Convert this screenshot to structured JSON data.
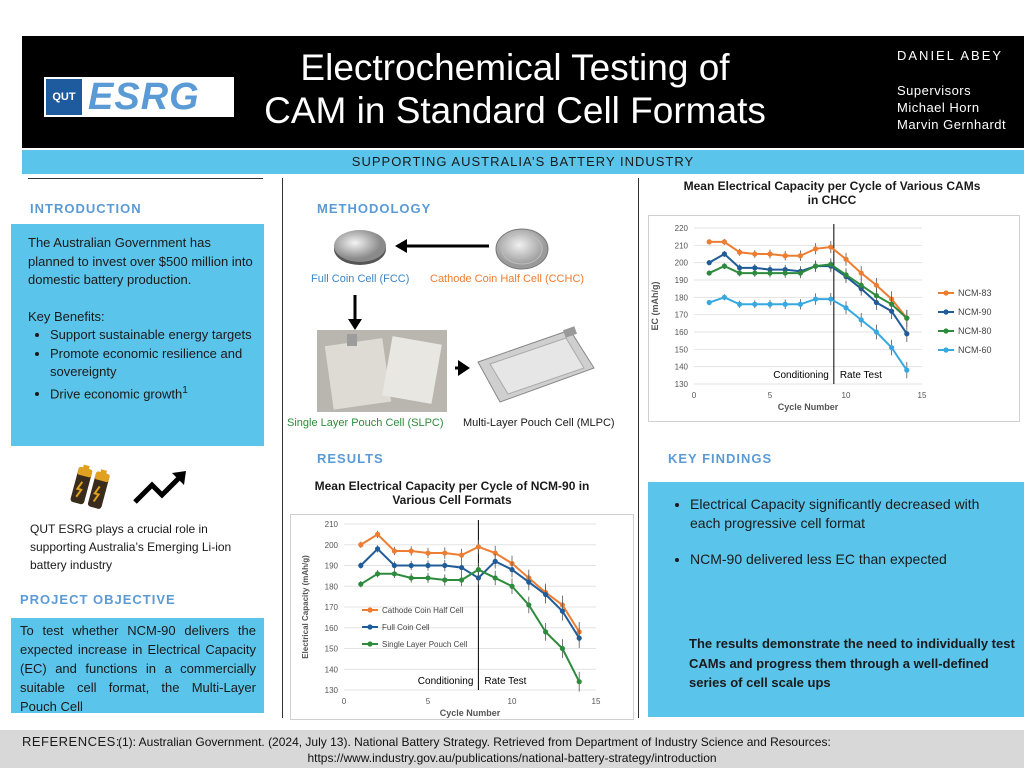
{
  "header": {
    "title_line1": "Electrochemical Testing of",
    "title_line2": "CAM in Standard Cell Formats",
    "author": "DANIEL  ABEY",
    "supervisors_label": "Supervisors",
    "supervisor1": "Michael Horn",
    "supervisor2": "Marvin Gernhardt",
    "logo_small": "QUT",
    "logo_big": "ESRG",
    "tagline": "SUPPORTING AUSTRALIA’S BATTERY INDUSTRY"
  },
  "intro": {
    "heading": "INTRODUCTION",
    "para": "The Australian Government has planned to invest over $500 million into domestic battery production.",
    "benefits_label": "Key Benefits:",
    "benefits": [
      "Support sustainable energy targets",
      "Promote economic resilience and sovereignty",
      "Drive economic growth"
    ],
    "footnote": "1",
    "qut_text": "QUT ESRG plays a crucial role in supporting Australia’s Emerging Li-ion battery industry"
  },
  "objective": {
    "heading": "PROJECT OBJECTIVE",
    "text": "To test whether NCM-90 delivers the expected increase in Electrical Capacity (EC) and functions in a commercially suitable cell format, the Multi-Layer Pouch Cell"
  },
  "methodology": {
    "heading": "METHODOLOGY",
    "fcc": "Full Coin Cell (FCC)",
    "cchc": "Cathode Coin Half Cell (CCHC)",
    "slpc": "Single Layer Pouch Cell (SLPC)",
    "mlpc": "Multi-Layer Pouch Cell (MLPC)"
  },
  "results": {
    "heading": "RESULTS"
  },
  "key_findings": {
    "heading": "KEY FINDINGS",
    "bullets": [
      "Electrical Capacity significantly decreased with each progressive cell format",
      "NCM-90 delivered less EC than expected"
    ],
    "conclusion": "The results demonstrate the need to individually test CAMs and progress them through a well-defined series of cell scale ups"
  },
  "references": {
    "label": "REFERENCES:",
    "text": "(1): Australian Government. (2024, July 13). National Battery Strategy. Retrieved from Department of Industry Science and Resources:",
    "url": "https://www.industry.gov.au/publications/national-battery-strategy/introduction"
  },
  "chart_data": [
    {
      "type": "line",
      "title": "Mean Electrical Capacity per Cycle of Various CAMs in CHCC",
      "xlabel": "Cycle Number",
      "ylabel": "EC (mAh/g)",
      "xlim": [
        0,
        15
      ],
      "ylim": [
        130,
        220
      ],
      "xticks": [
        0,
        5,
        10,
        15
      ],
      "yticks": [
        130,
        140,
        150,
        160,
        170,
        180,
        190,
        200,
        210,
        220
      ],
      "divider_x": 9.2,
      "annotations": [
        "Conditioning",
        "Rate Test"
      ],
      "legend_position": "right",
      "x": [
        1,
        2,
        3,
        4,
        5,
        6,
        7,
        8,
        9,
        10,
        11,
        12,
        13,
        14
      ],
      "series": [
        {
          "name": "NCM-83",
          "color": "#ed7d31",
          "values": [
            212,
            212,
            206,
            205,
            205,
            204,
            204,
            208,
            209,
            202,
            194,
            187,
            179,
            168
          ]
        },
        {
          "name": "NCM-90",
          "color": "#1f5c99",
          "values": [
            200,
            205,
            197,
            197,
            196,
            196,
            195,
            198,
            198,
            192,
            185,
            177,
            172,
            159
          ]
        },
        {
          "name": "NCM-80",
          "color": "#2e8b3e",
          "values": [
            194,
            198,
            194,
            194,
            194,
            194,
            194,
            198,
            199,
            193,
            187,
            181,
            176,
            168
          ]
        },
        {
          "name": "NCM-60",
          "color": "#36a9e1",
          "values": [
            177,
            180,
            176,
            176,
            176,
            176,
            176,
            179,
            179,
            174,
            167,
            160,
            151,
            138
          ]
        }
      ]
    },
    {
      "type": "line",
      "title": "Mean Electrical Capacity per Cycle  of NCM-90 in Various Cell Formats",
      "xlabel": "Cycle Number",
      "ylabel": "Electrical Capacity (mAh/g)",
      "xlim": [
        0,
        15
      ],
      "ylim": [
        130,
        210
      ],
      "xticks": [
        0,
        5,
        10,
        15
      ],
      "yticks": [
        130,
        140,
        150,
        160,
        170,
        180,
        190,
        200,
        210
      ],
      "divider_x": 8,
      "annotations": [
        "Conditioning",
        "Rate Test"
      ],
      "legend_position": "left",
      "x": [
        1,
        2,
        3,
        4,
        5,
        6,
        7,
        8,
        9,
        10,
        11,
        12,
        13,
        14
      ],
      "series": [
        {
          "name": "Cathode Coin Half Cell",
          "color": "#ed7d31",
          "values": [
            200,
            205,
            197,
            197,
            196,
            196,
            195,
            199,
            196,
            191,
            184,
            177,
            171,
            158
          ]
        },
        {
          "name": "Full Coin Cell",
          "color": "#1f5c99",
          "values": [
            190,
            198,
            190,
            190,
            190,
            190,
            189,
            184,
            192,
            188,
            182,
            176,
            168,
            155
          ]
        },
        {
          "name": "Single Layer Pouch Cell",
          "color": "#2e8b3e",
          "values": [
            181,
            186,
            186,
            184,
            184,
            183,
            183,
            188,
            184,
            180,
            171,
            158,
            150,
            134
          ]
        }
      ]
    }
  ]
}
